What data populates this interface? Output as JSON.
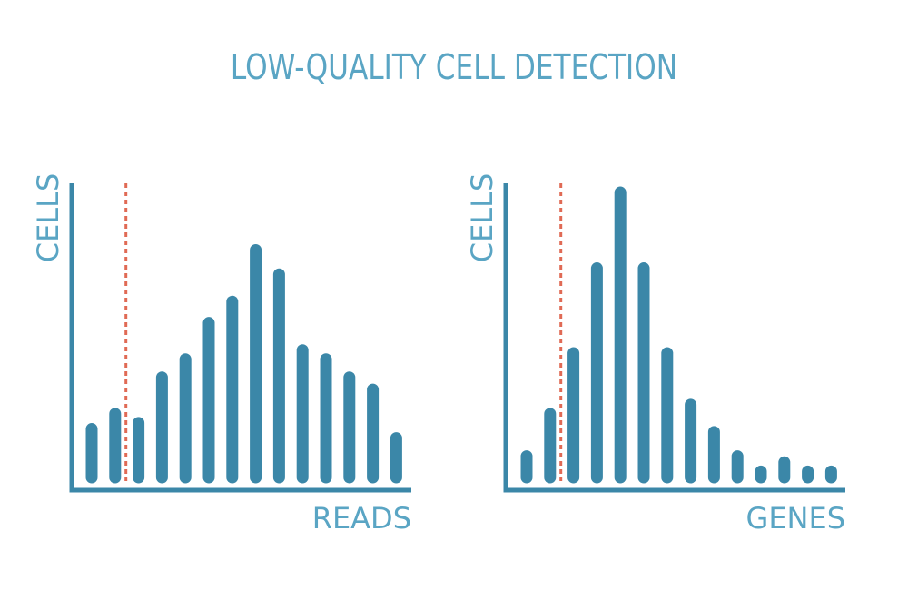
{
  "title": "LOW-QUALITY CELL DETECTION",
  "colors": {
    "bar": "#3b87a8",
    "text": "#5aa5c4",
    "threshold": "#e06a55"
  },
  "chart_data": [
    {
      "type": "bar",
      "xlabel": "READS",
      "ylabel": "CELLS",
      "ylim": [
        0,
        100
      ],
      "values": [
        16,
        21,
        18,
        33,
        39,
        51,
        58,
        75,
        67,
        42,
        39,
        33,
        29,
        13
      ],
      "threshold_after_bar": 2,
      "grid": false
    },
    {
      "type": "bar",
      "xlabel": "GENES",
      "ylabel": "CELLS",
      "ylim": [
        0,
        100
      ],
      "values": [
        7,
        21,
        41,
        69,
        94,
        69,
        41,
        24,
        15,
        7,
        2,
        5,
        2,
        2
      ],
      "threshold_after_bar": 2,
      "grid": false
    }
  ]
}
